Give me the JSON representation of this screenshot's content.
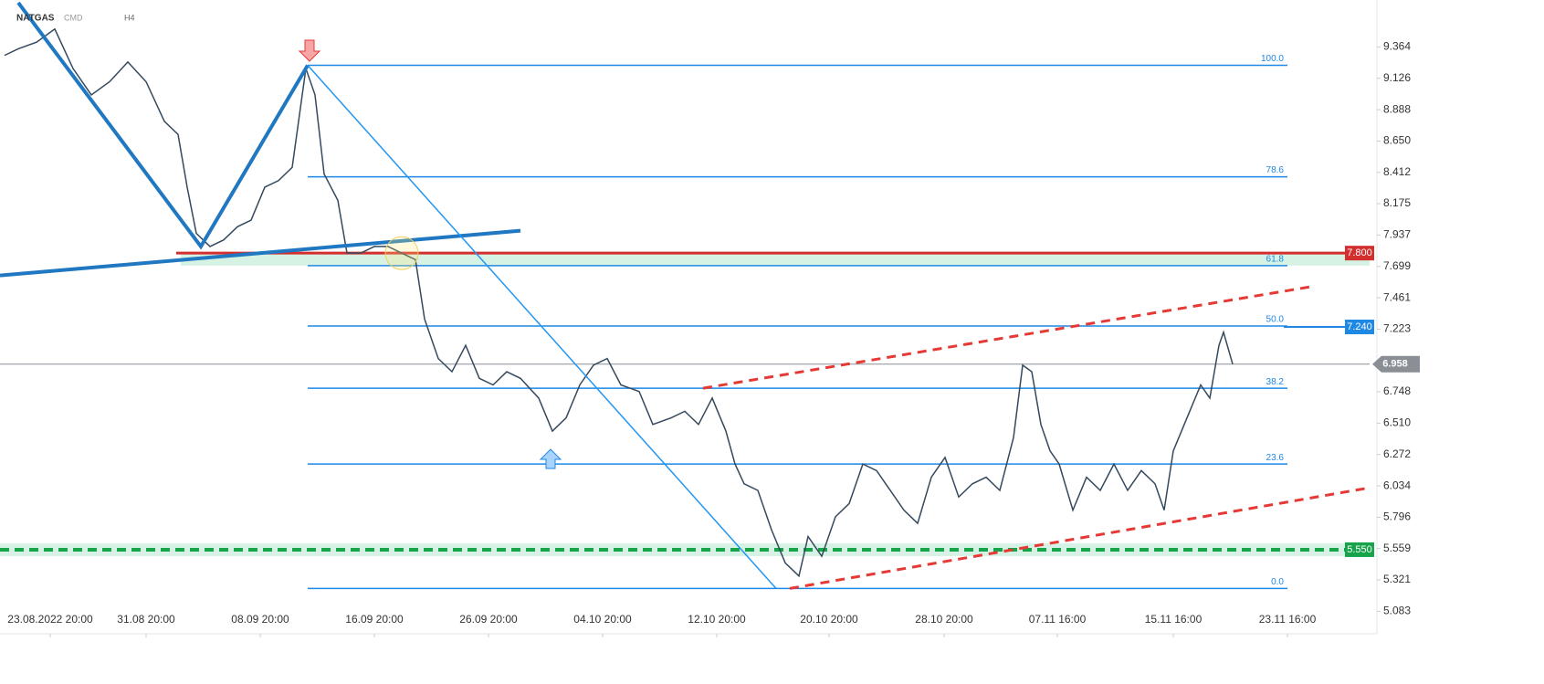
{
  "chart_data": {
    "type": "line",
    "title": "NATGAS",
    "market": "CMD",
    "timeframe": "H4",
    "color": "#34495e",
    "x": [
      5,
      20,
      40,
      60,
      80,
      100,
      120,
      140,
      160,
      180,
      195,
      205,
      215,
      230,
      245,
      260,
      275,
      290,
      305,
      320,
      335,
      345,
      355,
      370,
      380,
      395,
      410,
      425,
      440,
      455,
      465,
      480,
      495,
      510,
      525,
      540,
      555,
      570,
      590,
      605,
      620,
      635,
      650,
      665,
      680,
      700,
      715,
      735,
      750,
      765,
      780,
      795,
      805,
      815,
      830,
      845,
      860,
      875,
      885,
      900,
      915,
      930,
      945,
      960,
      975,
      990,
      1005,
      1020,
      1035,
      1050,
      1065,
      1080,
      1095,
      1110,
      1120,
      1130,
      1140,
      1150,
      1160,
      1175,
      1190,
      1205,
      1220,
      1235,
      1250,
      1265,
      1275,
      1285,
      1300,
      1315,
      1325,
      1335,
      1340,
      1350
    ],
    "values": [
      9.3,
      9.35,
      9.4,
      9.5,
      9.2,
      9.0,
      9.1,
      9.25,
      9.1,
      8.8,
      8.7,
      8.3,
      7.95,
      7.85,
      7.9,
      8.0,
      8.05,
      8.3,
      8.35,
      8.45,
      9.2,
      9.0,
      8.4,
      8.2,
      7.8,
      7.8,
      7.85,
      7.85,
      7.8,
      7.75,
      7.3,
      7.0,
      6.9,
      7.1,
      6.85,
      6.8,
      6.9,
      6.85,
      6.7,
      6.45,
      6.55,
      6.8,
      6.95,
      7.0,
      6.8,
      6.75,
      6.5,
      6.55,
      6.6,
      6.5,
      6.7,
      6.45,
      6.2,
      6.05,
      6.0,
      5.7,
      5.45,
      5.35,
      5.65,
      5.5,
      5.8,
      5.9,
      6.2,
      6.15,
      6.0,
      5.85,
      5.75,
      6.1,
      6.25,
      5.95,
      6.05,
      6.1,
      6.0,
      6.4,
      6.95,
      6.9,
      6.5,
      6.3,
      6.2,
      5.85,
      6.1,
      6.0,
      6.2,
      6.0,
      6.15,
      6.05,
      5.85,
      6.3,
      6.55,
      6.8,
      6.7,
      7.1,
      7.2,
      6.958
    ],
    "xlim": [
      0,
      1500
    ],
    "xticks": [
      {
        "value": 55,
        "label": "23.08.2022 20:00"
      },
      {
        "value": 160,
        "label": "31.08 20:00"
      },
      {
        "value": 285,
        "label": "08.09 20:00"
      },
      {
        "value": 410,
        "label": "16.09 20:00"
      },
      {
        "value": 535,
        "label": "26.09 20:00"
      },
      {
        "value": 660,
        "label": "04.10 20:00"
      },
      {
        "value": 785,
        "label": "12.10 20:00"
      },
      {
        "value": 908,
        "label": "20.10 20:00"
      },
      {
        "value": 1034,
        "label": "28.10 20:00"
      },
      {
        "value": 1158,
        "label": "07.11 16:00"
      },
      {
        "value": 1285,
        "label": "15.11 16:00"
      },
      {
        "value": 1410,
        "label": "23.11 16:00"
      }
    ],
    "ylim": [
      4.94,
      9.72
    ],
    "yticks": [
      9.364,
      9.126,
      8.888,
      {
        "value": 8.65,
        "label": "8.650"
      },
      8.412,
      8.175,
      7.937,
      7.699,
      7.461,
      7.223,
      6.748,
      {
        "value": 6.51,
        "label": "6.510"
      },
      6.272,
      6.034,
      5.796,
      5.559,
      5.321,
      5.083
    ],
    "fib_levels": [
      {
        "ratio": "100.0",
        "price": 9.225
      },
      {
        "ratio": "78.6",
        "price": 8.379
      },
      {
        "ratio": "61.8",
        "price": 7.705
      },
      {
        "ratio": "50.0",
        "price": 7.247
      },
      {
        "ratio": "38.2",
        "price": 6.775
      },
      {
        "ratio": "23.6",
        "price": 6.2
      },
      {
        "ratio": "0.0",
        "price": 5.256
      }
    ],
    "price_lines": [
      {
        "value": 7.8,
        "label": "7.800",
        "color": "#d32f2f"
      },
      {
        "value": 7.24,
        "label": "7.240",
        "color": "#1e88e5"
      },
      {
        "value": 6.958,
        "label": "6.958",
        "color": "#8a8f96"
      },
      {
        "value": 5.55,
        "label": "5.550",
        "color": "#16a34a"
      }
    ],
    "trendlines": [
      {
        "x": [
          20,
          220,
          337
        ],
        "y": [
          9.7,
          7.85,
          9.225
        ],
        "color": "#1f78c1",
        "width": 4
      },
      {
        "x": [
          0,
          570
        ],
        "y": [
          7.63,
          7.97
        ],
        "color": "#1f78c1",
        "width": 4
      },
      {
        "x": [
          337,
          850
        ],
        "y": [
          9.225,
          5.256
        ],
        "color": "#2196f3",
        "width": 1.5
      },
      {
        "x": [
          770,
          1440
        ],
        "y": [
          6.775,
          7.55
        ],
        "color": "#e53935",
        "width": 3,
        "dashed": true
      },
      {
        "x": [
          865,
          1500
        ],
        "y": [
          5.256,
          6.02
        ],
        "color": "#e53935",
        "width": 3,
        "dashed": true
      }
    ]
  }
}
